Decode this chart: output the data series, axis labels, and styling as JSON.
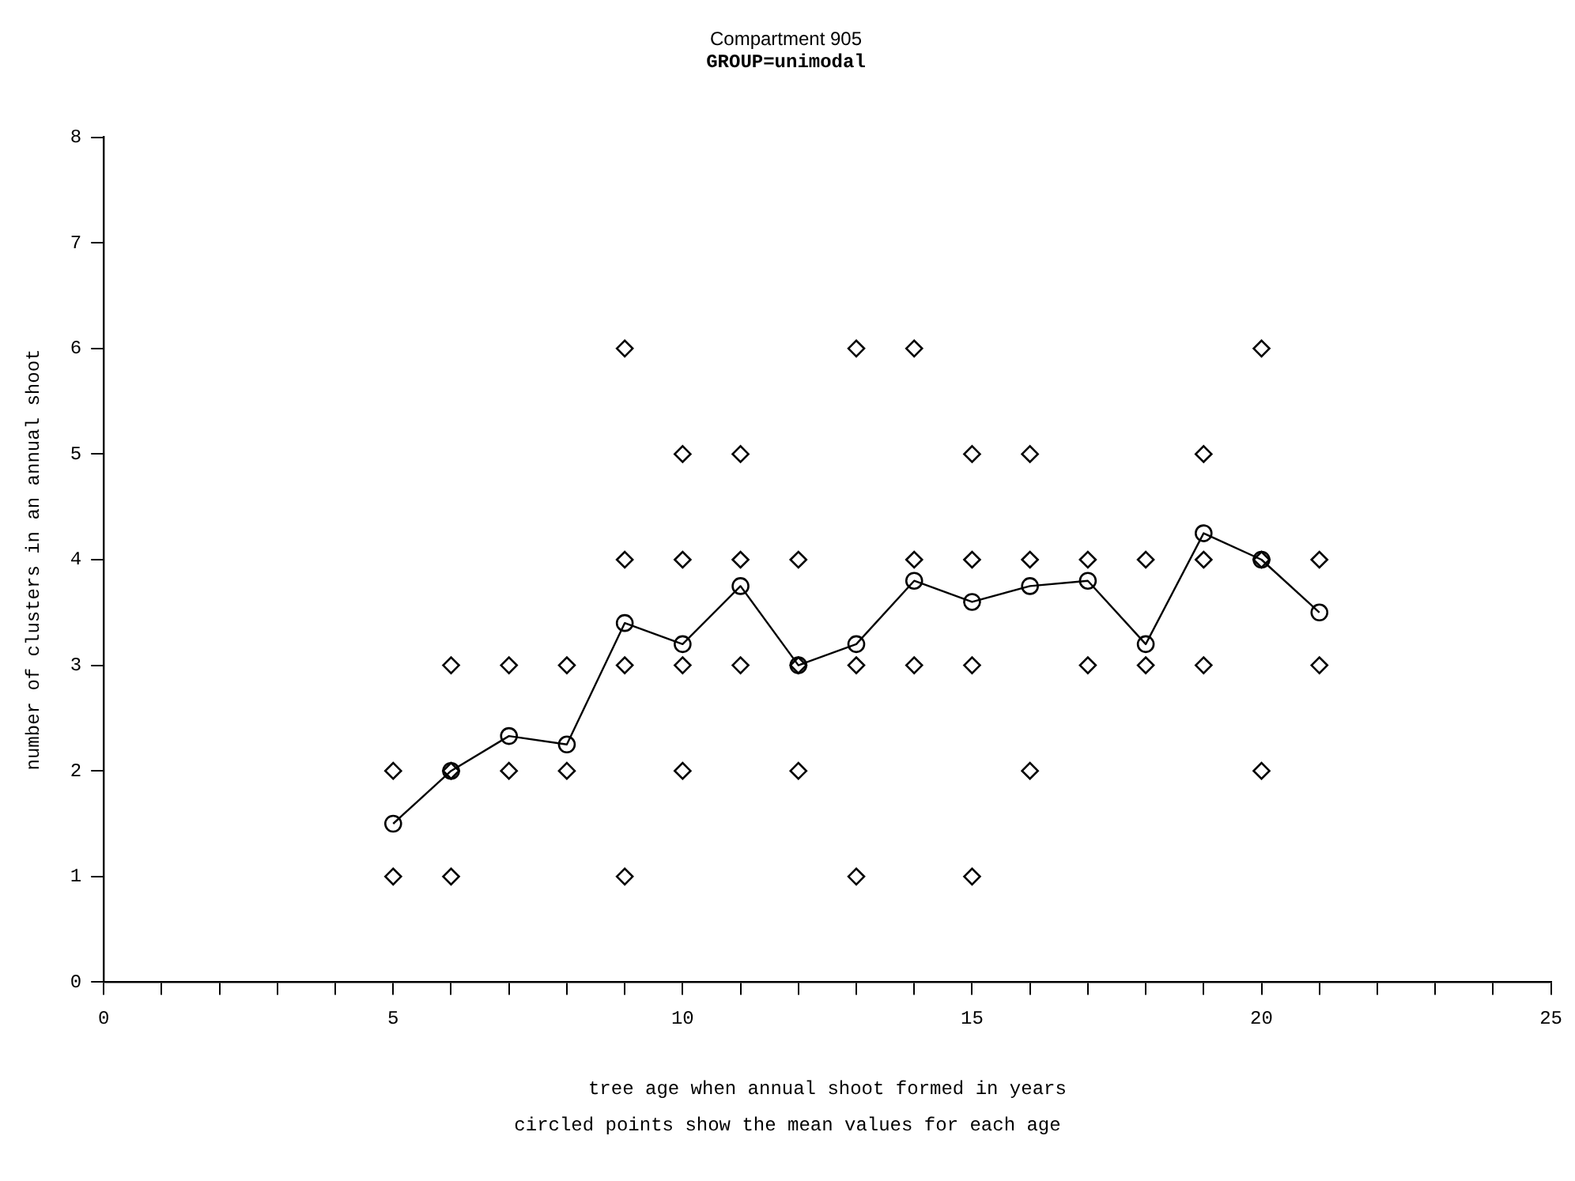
{
  "chart_data": {
    "type": "scatter",
    "title": "Compartment 905",
    "subtitle": "GROUP=unimodal",
    "xlabel": "tree age when annual shoot formed in years",
    "ylabel": "number of clusters in an annual shoot",
    "annotations": [
      "circled points show the mean values for each age"
    ],
    "xlim": [
      0,
      25
    ],
    "xticks": [
      0,
      {
        "value": 1,
        "label": null
      },
      {
        "value": 2,
        "label": null
      },
      {
        "value": 3,
        "label": null
      },
      {
        "value": 4,
        "label": null
      },
      5,
      {
        "value": 6,
        "label": null
      },
      {
        "value": 7,
        "label": null
      },
      {
        "value": 8,
        "label": null
      },
      {
        "value": 9,
        "label": null
      },
      10,
      {
        "value": 11,
        "label": null
      },
      {
        "value": 12,
        "label": null
      },
      {
        "value": 13,
        "label": null
      },
      {
        "value": 14,
        "label": null
      },
      15,
      {
        "value": 16,
        "label": null
      },
      {
        "value": 17,
        "label": null
      },
      {
        "value": 18,
        "label": null
      },
      {
        "value": 19,
        "label": null
      },
      20,
      {
        "value": 21,
        "label": null
      },
      {
        "value": 22,
        "label": null
      },
      {
        "value": 23,
        "label": null
      },
      {
        "value": 24,
        "label": null
      },
      25
    ],
    "ylim": [
      0,
      8
    ],
    "yticks": [
      0,
      1,
      2,
      3,
      4,
      5,
      6,
      7,
      8
    ],
    "grid": false,
    "legend": false,
    "series": [
      {
        "type": "scatter",
        "marker": "diamond",
        "color": "#000000",
        "x": [
          5,
          5,
          6,
          6,
          6,
          7,
          7,
          8,
          8,
          9,
          9,
          9,
          9,
          10,
          10,
          10,
          10,
          11,
          11,
          11,
          12,
          12,
          12,
          13,
          13,
          13,
          14,
          14,
          14,
          15,
          15,
          15,
          15,
          16,
          16,
          16,
          17,
          17,
          18,
          18,
          19,
          19,
          19,
          20,
          20,
          20,
          21,
          21
        ],
        "values": [
          1,
          2,
          1,
          2,
          3,
          2,
          3,
          2,
          3,
          1,
          3,
          4,
          6,
          2,
          3,
          4,
          5,
          3,
          4,
          5,
          2,
          3,
          4,
          1,
          3,
          6,
          3,
          4,
          6,
          1,
          3,
          4,
          5,
          2,
          4,
          5,
          3,
          4,
          3,
          4,
          3,
          4,
          5,
          2,
          4,
          6,
          3,
          4
        ]
      },
      {
        "type": "line",
        "marker": "circle",
        "line_style": "solid",
        "color": "#000000",
        "x": [
          5,
          6,
          7,
          8,
          9,
          10,
          11,
          12,
          13,
          14,
          15,
          16,
          17,
          18,
          19,
          20,
          21
        ],
        "values": [
          1.5,
          2,
          2.33,
          2.25,
          3.4,
          3.2,
          3.75,
          3,
          3.2,
          3.8,
          3.6,
          3.75,
          3.8,
          3.2,
          4.25,
          4,
          3.5
        ]
      }
    ]
  }
}
